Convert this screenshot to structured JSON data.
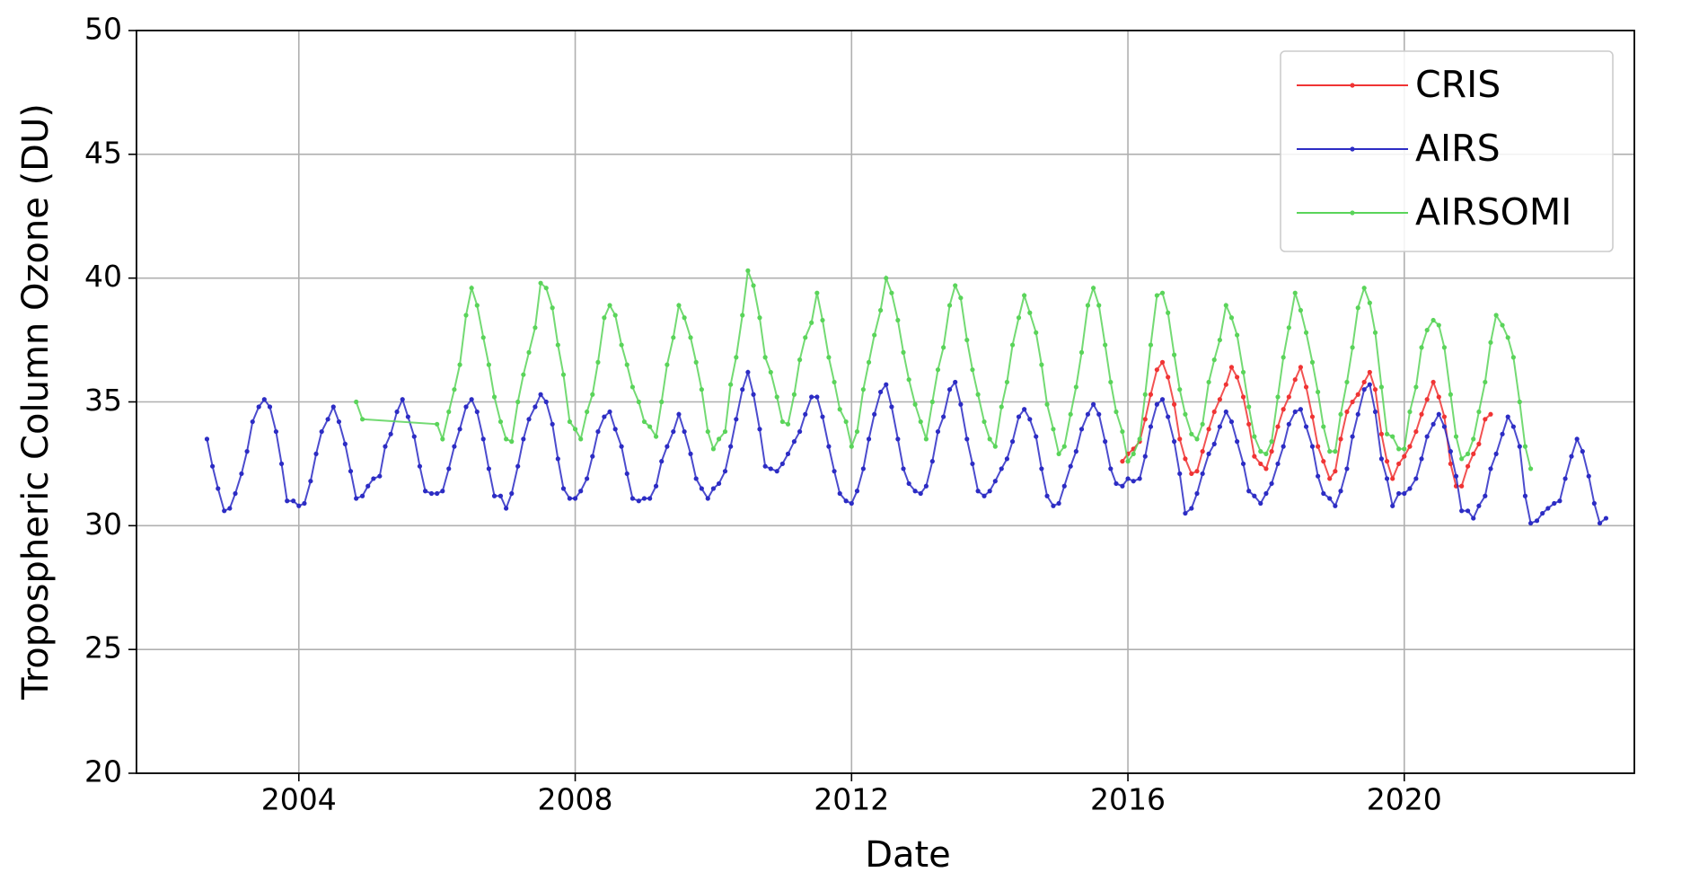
{
  "chart_data": {
    "type": "line",
    "x_label": "Date",
    "y_label": "Tropospheric Column Ozone (DU)",
    "xlim": [
      2001.65,
      2023.33
    ],
    "xticks": [
      2004,
      2008,
      2012,
      2016,
      2020
    ],
    "ylim": [
      20,
      50
    ],
    "yticks": [
      20,
      25,
      30,
      35,
      40,
      45,
      50
    ],
    "grid": true,
    "legend": "upper right",
    "series": [
      {
        "name": "CRIS",
        "color": "#f03434",
        "x": [
          2015.92,
          2016,
          2016.08,
          2016.17,
          2016.25,
          2016.33,
          2016.42,
          2016.5,
          2016.58,
          2016.67,
          2016.75,
          2016.83,
          2016.92,
          2017,
          2017.08,
          2017.17,
          2017.25,
          2017.33,
          2017.42,
          2017.5,
          2017.58,
          2017.67,
          2017.75,
          2017.83,
          2017.92,
          2018,
          2018.08,
          2018.17,
          2018.25,
          2018.33,
          2018.42,
          2018.5,
          2018.58,
          2018.67,
          2018.75,
          2018.83,
          2018.92,
          2019,
          2019.08,
          2019.17,
          2019.25,
          2019.33,
          2019.42,
          2019.5,
          2019.58,
          2019.67,
          2019.75,
          2019.83,
          2019.92,
          2020,
          2020.08,
          2020.17,
          2020.25,
          2020.33,
          2020.42,
          2020.5,
          2020.58,
          2020.67,
          2020.75,
          2020.83,
          2020.92,
          2021,
          2021.08,
          2021.17,
          2021.25
        ],
        "values": [
          32.6,
          32.9,
          33.1,
          33.4,
          34.3,
          35.3,
          36.3,
          36.6,
          36.0,
          34.9,
          33.5,
          32.7,
          32.1,
          32.2,
          33.0,
          33.9,
          34.6,
          35.1,
          35.7,
          36.4,
          36.0,
          35.2,
          34.1,
          32.8,
          32.5,
          32.3,
          33.0,
          34.0,
          34.7,
          35.2,
          35.9,
          36.4,
          35.6,
          34.4,
          33.2,
          32.6,
          31.9,
          32.2,
          33.5,
          34.6,
          35.0,
          35.3,
          35.8,
          36.2,
          35.5,
          33.7,
          32.6,
          31.9,
          32.5,
          32.8,
          33.2,
          33.8,
          34.5,
          35.1,
          35.8,
          35.2,
          34.4,
          32.5,
          31.6,
          31.6,
          32.4,
          32.9,
          33.3,
          34.3,
          34.5
        ]
      },
      {
        "name": "AIRS",
        "color": "#2c2cc4",
        "x": [
          2002.67,
          2002.75,
          2002.83,
          2002.92,
          2003,
          2003.08,
          2003.17,
          2003.25,
          2003.33,
          2003.42,
          2003.5,
          2003.58,
          2003.67,
          2003.75,
          2003.83,
          2003.92,
          2004,
          2004.08,
          2004.17,
          2004.25,
          2004.33,
          2004.42,
          2004.5,
          2004.58,
          2004.67,
          2004.75,
          2004.83,
          2004.92,
          2005,
          2005.08,
          2005.17,
          2005.25,
          2005.33,
          2005.42,
          2005.5,
          2005.58,
          2005.67,
          2005.75,
          2005.83,
          2005.92,
          2006,
          2006.08,
          2006.17,
          2006.25,
          2006.33,
          2006.42,
          2006.5,
          2006.58,
          2006.67,
          2006.75,
          2006.83,
          2006.92,
          2007,
          2007.08,
          2007.17,
          2007.25,
          2007.33,
          2007.42,
          2007.5,
          2007.58,
          2007.67,
          2007.75,
          2007.83,
          2007.92,
          2008,
          2008.08,
          2008.17,
          2008.25,
          2008.33,
          2008.42,
          2008.5,
          2008.58,
          2008.67,
          2008.75,
          2008.83,
          2008.92,
          2009,
          2009.08,
          2009.17,
          2009.25,
          2009.33,
          2009.42,
          2009.5,
          2009.58,
          2009.67,
          2009.75,
          2009.83,
          2009.92,
          2010,
          2010.08,
          2010.17,
          2010.25,
          2010.33,
          2010.42,
          2010.5,
          2010.58,
          2010.67,
          2010.75,
          2010.83,
          2010.92,
          2011,
          2011.08,
          2011.17,
          2011.25,
          2011.33,
          2011.42,
          2011.5,
          2011.58,
          2011.67,
          2011.75,
          2011.83,
          2011.92,
          2012,
          2012.08,
          2012.17,
          2012.25,
          2012.33,
          2012.42,
          2012.5,
          2012.58,
          2012.67,
          2012.75,
          2012.83,
          2012.92,
          2013,
          2013.08,
          2013.17,
          2013.25,
          2013.33,
          2013.42,
          2013.5,
          2013.58,
          2013.67,
          2013.75,
          2013.83,
          2013.92,
          2014,
          2014.08,
          2014.17,
          2014.25,
          2014.33,
          2014.42,
          2014.5,
          2014.58,
          2014.67,
          2014.75,
          2014.83,
          2014.92,
          2015,
          2015.08,
          2015.17,
          2015.25,
          2015.33,
          2015.42,
          2015.5,
          2015.58,
          2015.67,
          2015.75,
          2015.83,
          2015.92,
          2016,
          2016.08,
          2016.17,
          2016.25,
          2016.33,
          2016.42,
          2016.5,
          2016.58,
          2016.67,
          2016.75,
          2016.83,
          2016.92,
          2017,
          2017.08,
          2017.17,
          2017.25,
          2017.33,
          2017.42,
          2017.5,
          2017.58,
          2017.67,
          2017.75,
          2017.83,
          2017.92,
          2018,
          2018.08,
          2018.17,
          2018.25,
          2018.33,
          2018.42,
          2018.5,
          2018.58,
          2018.67,
          2018.75,
          2018.83,
          2018.92,
          2019,
          2019.08,
          2019.17,
          2019.25,
          2019.33,
          2019.42,
          2019.5,
          2019.58,
          2019.67,
          2019.75,
          2019.83,
          2019.92,
          2020,
          2020.08,
          2020.17,
          2020.25,
          2020.33,
          2020.42,
          2020.5,
          2020.58,
          2020.67,
          2020.75,
          2020.83,
          2020.92,
          2021,
          2021.08,
          2021.17,
          2021.25,
          2021.33,
          2021.42,
          2021.5,
          2021.58,
          2021.67,
          2021.75,
          2021.83,
          2021.92,
          2022,
          2022.08,
          2022.17,
          2022.25,
          2022.33,
          2022.42,
          2022.5,
          2022.58,
          2022.67,
          2022.75,
          2022.83,
          2022.92
        ],
        "values": [
          33.5,
          32.4,
          31.5,
          30.6,
          30.7,
          31.3,
          32.1,
          33.0,
          34.2,
          34.8,
          35.1,
          34.8,
          33.8,
          32.5,
          31.0,
          31.0,
          30.8,
          30.9,
          31.8,
          32.9,
          33.8,
          34.3,
          34.8,
          34.2,
          33.3,
          32.2,
          31.1,
          31.2,
          31.6,
          31.9,
          32.0,
          33.2,
          33.7,
          34.6,
          35.1,
          34.4,
          33.6,
          32.4,
          31.4,
          31.3,
          31.3,
          31.4,
          32.3,
          33.2,
          33.9,
          34.8,
          35.1,
          34.6,
          33.5,
          32.3,
          31.2,
          31.2,
          30.7,
          31.3,
          32.4,
          33.5,
          34.3,
          34.8,
          35.3,
          35.0,
          34.1,
          32.7,
          31.5,
          31.1,
          31.1,
          31.4,
          31.9,
          32.8,
          33.8,
          34.4,
          34.6,
          33.9,
          33.2,
          32.1,
          31.1,
          31.0,
          31.1,
          31.1,
          31.6,
          32.6,
          33.2,
          33.8,
          34.5,
          33.8,
          32.9,
          31.9,
          31.5,
          31.1,
          31.5,
          31.7,
          32.2,
          33.2,
          34.3,
          35.5,
          36.2,
          35.3,
          33.9,
          32.4,
          32.3,
          32.2,
          32.5,
          32.9,
          33.4,
          33.8,
          34.5,
          35.2,
          35.2,
          34.4,
          33.2,
          32.2,
          31.3,
          31.0,
          30.9,
          31.4,
          32.3,
          33.5,
          34.5,
          35.4,
          35.7,
          34.8,
          33.5,
          32.3,
          31.7,
          31.4,
          31.3,
          31.6,
          32.6,
          33.8,
          34.4,
          35.5,
          35.8,
          34.9,
          33.5,
          32.5,
          31.4,
          31.2,
          31.4,
          31.8,
          32.3,
          32.7,
          33.4,
          34.4,
          34.7,
          34.3,
          33.6,
          32.3,
          31.2,
          30.8,
          30.9,
          31.6,
          32.4,
          33.0,
          33.9,
          34.5,
          34.9,
          34.5,
          33.4,
          32.3,
          31.7,
          31.6,
          31.9,
          31.8,
          31.9,
          32.8,
          34.0,
          34.9,
          35.1,
          34.4,
          33.4,
          32.1,
          30.5,
          30.7,
          31.3,
          32.1,
          32.9,
          33.3,
          34.0,
          34.6,
          34.2,
          33.4,
          32.5,
          31.4,
          31.2,
          30.9,
          31.3,
          31.7,
          32.5,
          33.2,
          34.1,
          34.6,
          34.7,
          34.0,
          33.2,
          32.0,
          31.3,
          31.1,
          30.8,
          31.4,
          32.3,
          33.6,
          34.5,
          35.5,
          35.7,
          34.6,
          32.7,
          31.9,
          30.8,
          31.3,
          31.3,
          31.5,
          31.9,
          32.7,
          33.6,
          34.1,
          34.5,
          34.0,
          33.0,
          32.0,
          30.6,
          30.6,
          30.3,
          30.8,
          31.2,
          32.3,
          32.9,
          33.7,
          34.4,
          34.0,
          33.2,
          31.2,
          30.1,
          30.2,
          30.5,
          30.7,
          30.9,
          31.0,
          31.9,
          32.8,
          33.5,
          33.0,
          32.0,
          30.9,
          30.1,
          30.3
        ]
      },
      {
        "name": "AIRSOMI",
        "color": "#5ad45a",
        "x": [
          2004.83,
          2004.92,
          2006,
          2006.08,
          2006.17,
          2006.25,
          2006.33,
          2006.42,
          2006.5,
          2006.58,
          2006.67,
          2006.75,
          2006.83,
          2006.92,
          2007,
          2007.08,
          2007.17,
          2007.25,
          2007.33,
          2007.42,
          2007.5,
          2007.58,
          2007.67,
          2007.75,
          2007.83,
          2007.92,
          2008,
          2008.08,
          2008.17,
          2008.25,
          2008.33,
          2008.42,
          2008.5,
          2008.58,
          2008.67,
          2008.75,
          2008.83,
          2008.92,
          2009,
          2009.08,
          2009.17,
          2009.25,
          2009.33,
          2009.42,
          2009.5,
          2009.58,
          2009.67,
          2009.75,
          2009.83,
          2009.92,
          2010,
          2010.08,
          2010.17,
          2010.25,
          2010.33,
          2010.42,
          2010.5,
          2010.58,
          2010.67,
          2010.75,
          2010.83,
          2010.92,
          2011,
          2011.08,
          2011.17,
          2011.25,
          2011.33,
          2011.42,
          2011.5,
          2011.58,
          2011.67,
          2011.75,
          2011.83,
          2011.92,
          2012,
          2012.08,
          2012.17,
          2012.25,
          2012.33,
          2012.42,
          2012.5,
          2012.58,
          2012.67,
          2012.75,
          2012.83,
          2012.92,
          2013,
          2013.08,
          2013.17,
          2013.25,
          2013.33,
          2013.42,
          2013.5,
          2013.58,
          2013.67,
          2013.75,
          2013.83,
          2013.92,
          2014,
          2014.08,
          2014.17,
          2014.25,
          2014.33,
          2014.42,
          2014.5,
          2014.58,
          2014.67,
          2014.75,
          2014.83,
          2014.92,
          2015,
          2015.08,
          2015.17,
          2015.25,
          2015.33,
          2015.42,
          2015.5,
          2015.58,
          2015.67,
          2015.75,
          2015.83,
          2015.92,
          2016,
          2016.08,
          2016.17,
          2016.25,
          2016.33,
          2016.42,
          2016.5,
          2016.58,
          2016.67,
          2016.75,
          2016.83,
          2016.92,
          2017,
          2017.08,
          2017.17,
          2017.25,
          2017.33,
          2017.42,
          2017.5,
          2017.58,
          2017.67,
          2017.75,
          2017.83,
          2017.92,
          2018,
          2018.08,
          2018.17,
          2018.25,
          2018.33,
          2018.42,
          2018.5,
          2018.58,
          2018.67,
          2018.75,
          2018.83,
          2018.92,
          2019,
          2019.08,
          2019.17,
          2019.25,
          2019.33,
          2019.42,
          2019.5,
          2019.58,
          2019.67,
          2019.75,
          2019.83,
          2019.92,
          2020,
          2020.08,
          2020.17,
          2020.25,
          2020.33,
          2020.42,
          2020.5,
          2020.58,
          2020.67,
          2020.75,
          2020.83,
          2020.92,
          2021,
          2021.08,
          2021.17,
          2021.25,
          2021.33,
          2021.42,
          2021.5,
          2021.58,
          2021.67,
          2021.75,
          2021.83
        ],
        "values": [
          35.0,
          34.3,
          34.1,
          33.5,
          34.6,
          35.5,
          36.5,
          38.5,
          39.6,
          38.9,
          37.6,
          36.5,
          35.2,
          34.2,
          33.5,
          33.4,
          35.0,
          36.1,
          37.0,
          38.0,
          39.8,
          39.6,
          38.8,
          37.3,
          36.1,
          34.2,
          33.9,
          33.5,
          34.6,
          35.3,
          36.6,
          38.4,
          38.9,
          38.5,
          37.3,
          36.5,
          35.6,
          35.0,
          34.2,
          34.0,
          33.6,
          35.0,
          36.5,
          37.6,
          38.9,
          38.4,
          37.6,
          36.6,
          35.5,
          33.8,
          33.1,
          33.5,
          33.8,
          35.7,
          36.8,
          38.5,
          40.3,
          39.7,
          38.4,
          36.8,
          36.2,
          35.2,
          34.2,
          34.1,
          35.3,
          36.7,
          37.6,
          38.2,
          39.4,
          38.3,
          36.8,
          35.8,
          34.7,
          34.2,
          33.2,
          33.8,
          35.5,
          36.6,
          37.7,
          38.7,
          40.0,
          39.4,
          38.3,
          37.0,
          35.9,
          34.9,
          34.2,
          33.5,
          35.0,
          36.3,
          37.2,
          38.9,
          39.7,
          39.2,
          37.5,
          36.3,
          35.3,
          34.2,
          33.5,
          33.2,
          34.8,
          35.8,
          37.3,
          38.4,
          39.3,
          38.6,
          37.8,
          36.5,
          34.9,
          33.9,
          32.9,
          33.2,
          34.5,
          35.6,
          37.0,
          38.9,
          39.6,
          38.9,
          37.3,
          35.8,
          34.6,
          33.8,
          32.6,
          32.9,
          33.5,
          35.3,
          37.3,
          39.3,
          39.4,
          38.6,
          36.9,
          35.5,
          34.5,
          33.7,
          33.5,
          34.1,
          35.8,
          36.7,
          37.5,
          38.9,
          38.4,
          37.7,
          36.2,
          34.8,
          33.6,
          33.0,
          32.9,
          33.4,
          35.2,
          36.8,
          38.0,
          39.4,
          38.7,
          37.8,
          36.6,
          35.4,
          34.0,
          33.0,
          33.0,
          34.5,
          35.8,
          37.2,
          38.8,
          39.6,
          39.0,
          37.8,
          35.6,
          33.7,
          33.6,
          33.1,
          33.1,
          34.6,
          35.6,
          37.2,
          37.9,
          38.3,
          38.1,
          37.2,
          35.3,
          33.6,
          32.7,
          32.9,
          33.5,
          34.6,
          35.8,
          37.4,
          38.5,
          38.1,
          37.6,
          36.8,
          35.0,
          33.2,
          32.3
        ]
      }
    ]
  }
}
